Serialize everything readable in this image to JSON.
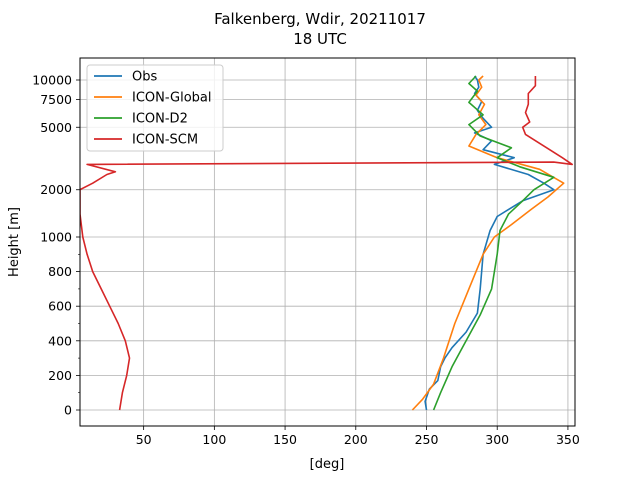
{
  "chart_data": {
    "type": "line",
    "title": "Falkenberg, Wdir, 20211017",
    "subtitle": "18 UTC",
    "xlabel": "[deg]",
    "ylabel": "Height [m]",
    "xlim": [
      5,
      355
    ],
    "x_ticks": [
      50,
      100,
      150,
      200,
      250,
      300,
      350
    ],
    "y_axis_note": "piecewise axis: linear 0-1000 m, logarithmic 1000-10000 m",
    "y_ticks": [
      {
        "value": 0,
        "label": "0"
      },
      {
        "value": 200,
        "label": "200"
      },
      {
        "value": 400,
        "label": "400"
      },
      {
        "value": 600,
        "label": "600"
      },
      {
        "value": 800,
        "label": "800"
      },
      {
        "value": 1000,
        "label": "1000"
      },
      {
        "value": 2000,
        "label": "2000"
      },
      {
        "value": 5000,
        "label": "5000"
      },
      {
        "value": 7500,
        "label": "7500"
      },
      {
        "value": 10000,
        "label": "10000"
      }
    ],
    "grid": true,
    "legend_position": "top-left",
    "series": [
      {
        "name": "Obs",
        "color": "#1f77b4",
        "points": [
          [
            250,
            0
          ],
          [
            249,
            50
          ],
          [
            252,
            120
          ],
          [
            258,
            170
          ],
          [
            260,
            250
          ],
          [
            263,
            300
          ],
          [
            268,
            360
          ],
          [
            278,
            450
          ],
          [
            286,
            560
          ],
          [
            288,
            700
          ],
          [
            290,
            900
          ],
          [
            295,
            1100
          ],
          [
            300,
            1350
          ],
          [
            318,
            1700
          ],
          [
            340,
            2000
          ],
          [
            333,
            2200
          ],
          [
            322,
            2500
          ],
          [
            298,
            2900
          ],
          [
            312,
            3200
          ],
          [
            290,
            3600
          ],
          [
            296,
            4100
          ],
          [
            284,
            4600
          ],
          [
            296,
            5000
          ],
          [
            290,
            5700
          ],
          [
            286,
            6400
          ],
          [
            289,
            7300
          ],
          [
            284,
            8200
          ],
          [
            287,
            9000
          ],
          [
            286,
            10000
          ],
          [
            284,
            10600
          ]
        ]
      },
      {
        "name": "ICON-Global",
        "color": "#ff7f0e",
        "points": [
          [
            240,
            0
          ],
          [
            247,
            60
          ],
          [
            255,
            150
          ],
          [
            262,
            300
          ],
          [
            270,
            500
          ],
          [
            280,
            700
          ],
          [
            290,
            900
          ],
          [
            298,
            1000
          ],
          [
            310,
            1200
          ],
          [
            324,
            1500
          ],
          [
            336,
            1800
          ],
          [
            347,
            2200
          ],
          [
            330,
            2700
          ],
          [
            300,
            3200
          ],
          [
            280,
            3800
          ],
          [
            285,
            4500
          ],
          [
            292,
            5200
          ],
          [
            287,
            6000
          ],
          [
            291,
            7000
          ],
          [
            285,
            8000
          ],
          [
            289,
            9000
          ],
          [
            287,
            10000
          ],
          [
            290,
            10600
          ]
        ]
      },
      {
        "name": "ICON-D2",
        "color": "#2ca02c",
        "points": [
          [
            255,
            0
          ],
          [
            260,
            100
          ],
          [
            268,
            250
          ],
          [
            278,
            400
          ],
          [
            288,
            550
          ],
          [
            296,
            700
          ],
          [
            300,
            900
          ],
          [
            302,
            1100
          ],
          [
            308,
            1400
          ],
          [
            318,
            1700
          ],
          [
            326,
            2000
          ],
          [
            340,
            2400
          ],
          [
            316,
            2800
          ],
          [
            300,
            3200
          ],
          [
            310,
            3700
          ],
          [
            288,
            4400
          ],
          [
            280,
            5200
          ],
          [
            290,
            6000
          ],
          [
            280,
            7200
          ],
          [
            286,
            8500
          ],
          [
            280,
            9500
          ],
          [
            285,
            10600
          ]
        ]
      },
      {
        "name": "ICON-SCM",
        "color": "#d62728",
        "points": [
          [
            33,
            0
          ],
          [
            35,
            100
          ],
          [
            38,
            200
          ],
          [
            40,
            300
          ],
          [
            37,
            400
          ],
          [
            32,
            500
          ],
          [
            26,
            600
          ],
          [
            20,
            700
          ],
          [
            14,
            800
          ],
          [
            10,
            900
          ],
          [
            7,
            1000
          ],
          [
            5,
            1400
          ],
          [
            5,
            2000
          ],
          [
            14,
            2200
          ],
          [
            24,
            2500
          ],
          [
            30,
            2600
          ],
          [
            10,
            2900
          ],
          [
            340,
            3000
          ],
          [
            353,
            2900
          ],
          [
            346,
            3200
          ],
          [
            335,
            3700
          ],
          [
            320,
            4500
          ],
          [
            318,
            5000
          ],
          [
            323,
            5400
          ],
          [
            320,
            6200
          ],
          [
            322,
            7000
          ],
          [
            322,
            8200
          ],
          [
            327,
            9200
          ],
          [
            327,
            10600
          ]
        ]
      }
    ]
  }
}
